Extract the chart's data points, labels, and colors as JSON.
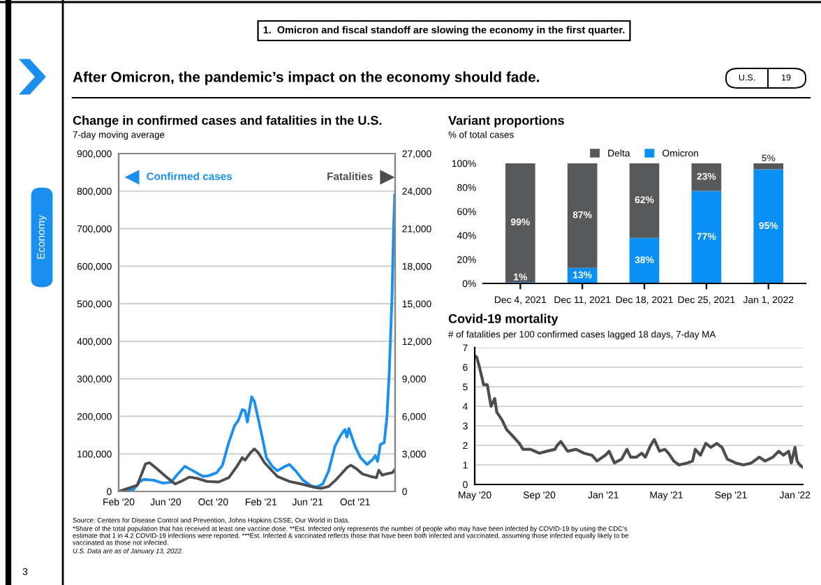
{
  "chart_data": [
    {
      "type": "line",
      "title": "Change in confirmed cases and fatalities in the U.S.",
      "subtitle": "7-day moving average",
      "annotations": [
        "1.  Omicron and fiscal standoff are slowing the economy in the first quarter.",
        "After Omicron, the pandemic’s impact on the economy should fade.",
        "U.S.",
        "19",
        "Economy",
        "3",
        "Source: Centers for Disease Control and Prevention, Johns Hopkins CSSE, Our World in Data.",
        "*Share of the total population that has received at least one vaccine dose. **Est. Infected only represents the number of people who may have been infected by COVID-19 by using the CDC’s",
        "estimate that 1 in 4.2 COVID-19 infections were reported. ***Est. Infected & vaccinated reflects those that have been both infected and vaccinated, assuming those infected equally likely to be",
        "vaccinated as those not infected.",
        "U.S. Data are as of January 13, 2022."
      ],
      "xlim": [
        "2020-02-01",
        "2022-01-12"
      ],
      "xticks": [
        {
          "value": "2020-02-01",
          "label": "Feb '20"
        },
        {
          "value": "2020-06-01",
          "label": "Jun '20"
        },
        {
          "value": "2020-10-01",
          "label": "Oct '20"
        },
        {
          "value": "2021-02-01",
          "label": "Feb '21"
        },
        {
          "value": "2021-06-01",
          "label": "Jun '21"
        },
        {
          "value": "2021-10-01",
          "label": "Oct '21"
        }
      ],
      "ylim": [
        0,
        900000
      ],
      "yticks": [
        0,
        {
          "value": 100000,
          "label": "100,000"
        },
        {
          "value": 200000,
          "label": "200,000"
        },
        {
          "value": 300000,
          "label": "300,000"
        },
        {
          "value": 400000,
          "label": "400,000"
        },
        {
          "value": 500000,
          "label": "500,000"
        },
        {
          "value": 600000,
          "label": "600,000"
        },
        {
          "value": 700000,
          "label": "700,000"
        },
        {
          "value": 800000,
          "label": "800,000"
        },
        {
          "value": 900000,
          "label": "900,000"
        }
      ],
      "y2lim": [
        0,
        27000
      ],
      "y2ticks": [
        0,
        {
          "value": 3000,
          "label": "3,000"
        },
        {
          "value": 6000,
          "label": "6,000"
        },
        {
          "value": 9000,
          "label": "9,000"
        },
        {
          "value": 12000,
          "label": "12,000"
        },
        {
          "value": 15000,
          "label": "15,000"
        },
        {
          "value": 18000,
          "label": "18,000"
        },
        {
          "value": 21000,
          "label": "21,000"
        },
        {
          "value": 24000,
          "label": "24,000"
        },
        {
          "value": 27000,
          "label": "27,000"
        }
      ],
      "grid": "y",
      "series": [
        {
          "name": "Confirmed cases",
          "color": "#1a8ff0",
          "x": [
            "2020-02-01",
            "2020-03-10",
            "2020-03-25",
            "2020-04-05",
            "2020-05-01",
            "2020-05-25",
            "2020-06-15",
            "2020-07-01",
            "2020-07-20",
            "2020-08-10",
            "2020-09-05",
            "2020-09-20",
            "2020-10-10",
            "2020-10-25",
            "2020-11-10",
            "2020-11-25",
            "2020-12-05",
            "2020-12-15",
            "2020-12-22",
            "2020-12-28",
            "2021-01-08",
            "2021-01-15",
            "2021-02-01",
            "2021-02-15",
            "2021-03-01",
            "2021-03-15",
            "2021-04-01",
            "2021-04-15",
            "2021-05-01",
            "2021-05-20",
            "2021-06-10",
            "2021-06-25",
            "2021-07-10",
            "2021-07-25",
            "2021-08-10",
            "2021-08-25",
            "2021-09-05",
            "2021-09-10",
            "2021-09-15",
            "2021-10-01",
            "2021-10-15",
            "2021-11-01",
            "2021-11-15",
            "2021-11-22",
            "2021-11-28",
            "2021-12-05",
            "2021-12-15",
            "2021-12-22",
            "2021-12-28",
            "2022-01-04",
            "2022-01-08",
            "2022-01-11"
          ],
          "values": [
            0,
            5000,
            25000,
            32000,
            30000,
            22000,
            25000,
            45000,
            67000,
            55000,
            40000,
            42000,
            50000,
            70000,
            130000,
            175000,
            190000,
            218000,
            215000,
            185000,
            252000,
            240000,
            160000,
            90000,
            68000,
            55000,
            65000,
            72000,
            55000,
            30000,
            15000,
            12000,
            20000,
            55000,
            120000,
            150000,
            165000,
            145000,
            168000,
            120000,
            90000,
            72000,
            85000,
            95000,
            80000,
            125000,
            130000,
            200000,
            320000,
            520000,
            700000,
            790000
          ]
        },
        {
          "name": "Fatalities",
          "color": "#4d4d4f",
          "axis": "y2",
          "x": [
            "2020-02-01",
            "2020-03-20",
            "2020-04-10",
            "2020-04-20",
            "2020-05-10",
            "2020-06-01",
            "2020-06-25",
            "2020-07-10",
            "2020-08-01",
            "2020-08-20",
            "2020-09-15",
            "2020-10-15",
            "2020-11-10",
            "2020-12-01",
            "2020-12-15",
            "2020-12-22",
            "2021-01-05",
            "2021-01-15",
            "2021-01-25",
            "2021-02-10",
            "2021-02-25",
            "2021-03-15",
            "2021-04-15",
            "2021-05-15",
            "2021-06-15",
            "2021-07-05",
            "2021-07-25",
            "2021-08-15",
            "2021-09-10",
            "2021-09-20",
            "2021-10-05",
            "2021-10-20",
            "2021-11-10",
            "2021-11-25",
            "2021-12-01",
            "2021-12-10",
            "2021-12-20",
            "2022-01-05",
            "2022-01-11"
          ],
          "values": [
            0,
            500,
            2200,
            2300,
            1800,
            1200,
            600,
            800,
            1150,
            1050,
            800,
            750,
            1100,
            2000,
            2700,
            2500,
            3100,
            3400,
            3100,
            2300,
            1800,
            1200,
            800,
            600,
            350,
            250,
            400,
            1000,
            1900,
            2100,
            1800,
            1400,
            1200,
            1100,
            1700,
            1300,
            1400,
            1500,
            1750
          ]
        }
      ]
    },
    {
      "type": "bar",
      "stacked": true,
      "title": "Variant proportions",
      "subtitle": "% of total cases",
      "categories": [
        "Dec 4, 2021",
        "Dec 11, 2021",
        "Dec 18, 2021",
        "Dec 25, 2021",
        "Jan 1, 2022"
      ],
      "ylim": [
        0,
        100
      ],
      "yticks": [
        {
          "value": 0,
          "label": "0%"
        },
        {
          "value": 20,
          "label": "20%"
        },
        {
          "value": 40,
          "label": "40%"
        },
        {
          "value": 60,
          "label": "60%"
        },
        {
          "value": 80,
          "label": "80%"
        },
        {
          "value": 100,
          "label": "100%"
        }
      ],
      "legend": "top",
      "series": [
        {
          "name": "Omicron",
          "color": "#0a8ff5",
          "values": [
            1,
            13,
            38,
            77,
            95
          ],
          "value_labels": [
            "1%",
            "13%",
            "38%",
            "77%",
            "95%"
          ]
        },
        {
          "name": "Delta",
          "color": "#58595b",
          "values": [
            99,
            87,
            62,
            23,
            5
          ],
          "value_labels": [
            "99%",
            "87%",
            "62%",
            "23%",
            "5%"
          ]
        }
      ]
    },
    {
      "type": "line",
      "title": "Covid-19 mortality",
      "subtitle": "# of fatalities per 100 confirmed cases lagged 18 days, 7-day MA",
      "xlim": [
        "2020-05-01",
        "2022-01-16"
      ],
      "xticks": [
        {
          "value": "2020-05-01",
          "label": "May '20"
        },
        {
          "value": "2020-09-01",
          "label": "Sep '20"
        },
        {
          "value": "2021-01-01",
          "label": "Jan '21"
        },
        {
          "value": "2021-05-01",
          "label": "May '21"
        },
        {
          "value": "2021-09-01",
          "label": "Sep '21"
        },
        {
          "value": "2022-01-01",
          "label": "Jan '22"
        }
      ],
      "ylim": [
        0,
        7
      ],
      "yticks": [
        0,
        1,
        2,
        3,
        4,
        5,
        6,
        7
      ],
      "grid": "y",
      "series": [
        {
          "color": "#4d4d4f",
          "x": [
            "2020-05-01",
            "2020-05-05",
            "2020-05-10",
            "2020-05-18",
            "2020-05-25",
            "2020-06-01",
            "2020-06-08",
            "2020-06-12",
            "2020-06-22",
            "2020-07-01",
            "2020-07-15",
            "2020-07-25",
            "2020-08-01",
            "2020-08-15",
            "2020-09-01",
            "2020-09-15",
            "2020-10-01",
            "2020-10-05",
            "2020-10-12",
            "2020-10-25",
            "2020-11-10",
            "2020-11-25",
            "2020-12-10",
            "2020-12-20",
            "2021-01-05",
            "2021-01-12",
            "2021-01-22",
            "2021-02-05",
            "2021-02-15",
            "2021-02-22",
            "2021-03-05",
            "2021-03-15",
            "2021-03-22",
            "2021-04-01",
            "2021-04-08",
            "2021-04-18",
            "2021-04-28",
            "2021-05-05",
            "2021-05-15",
            "2021-05-25",
            "2021-06-10",
            "2021-06-20",
            "2021-06-25",
            "2021-07-05",
            "2021-07-15",
            "2021-07-25",
            "2021-08-05",
            "2021-08-15",
            "2021-08-25",
            "2021-09-10",
            "2021-09-25",
            "2021-10-10",
            "2021-10-25",
            "2021-11-05",
            "2021-11-20",
            "2021-12-01",
            "2021-12-10",
            "2021-12-20",
            "2021-12-25",
            "2022-01-01",
            "2022-01-05",
            "2022-01-10",
            "2022-01-15"
          ],
          "values": [
            6.6,
            6.5,
            6.0,
            5.1,
            5.1,
            4.0,
            4.4,
            3.7,
            3.3,
            2.8,
            2.4,
            2.1,
            1.8,
            1.8,
            1.6,
            1.7,
            1.8,
            2.0,
            2.2,
            1.7,
            1.8,
            1.6,
            1.5,
            1.2,
            1.5,
            1.7,
            1.1,
            1.3,
            1.8,
            1.4,
            1.4,
            1.6,
            1.4,
            2.0,
            2.3,
            1.7,
            1.8,
            1.6,
            1.2,
            1.0,
            1.1,
            1.2,
            1.8,
            1.5,
            2.1,
            1.9,
            2.1,
            1.9,
            1.3,
            1.1,
            1.0,
            1.1,
            1.4,
            1.2,
            1.4,
            1.7,
            1.5,
            1.7,
            1.1,
            1.9,
            1.2,
            1.0,
            0.9
          ]
        }
      ]
    }
  ]
}
